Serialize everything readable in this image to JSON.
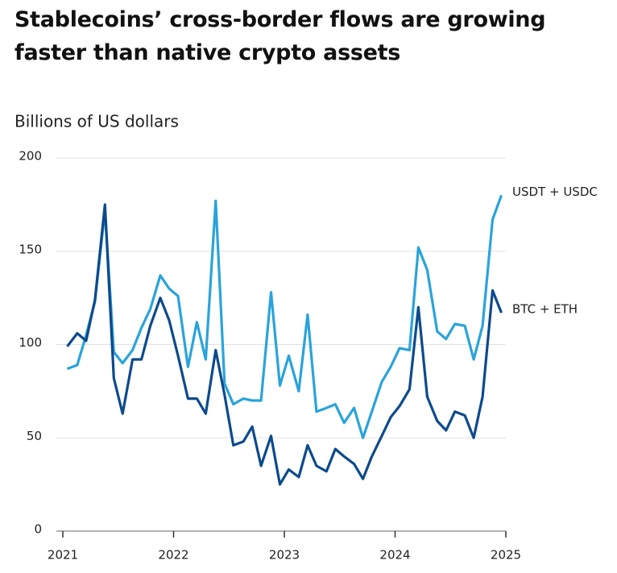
{
  "chart_data": {
    "type": "line",
    "title": "Stablecoins’ cross-border flows are growing faster than native crypto assets",
    "y_label": "Billions of US dollars",
    "x": [
      2021.04,
      2021.13,
      2021.21,
      2021.29,
      2021.38,
      2021.46,
      2021.54,
      2021.63,
      2021.71,
      2021.79,
      2021.88,
      2021.96,
      2022.04,
      2022.13,
      2022.21,
      2022.29,
      2022.38,
      2022.46,
      2022.54,
      2022.63,
      2022.71,
      2022.79,
      2022.88,
      2022.96,
      2023.04,
      2023.13,
      2023.21,
      2023.29,
      2023.38,
      2023.46,
      2023.54,
      2023.63,
      2023.71,
      2023.79,
      2023.88,
      2023.96,
      2024.04,
      2024.13,
      2024.21,
      2024.29,
      2024.38,
      2024.46,
      2024.54,
      2024.63,
      2024.71,
      2024.79,
      2024.88,
      2024.96
    ],
    "series": [
      {
        "name": "USDT + USDC",
        "color": "#2aa3db",
        "values": [
          87,
          89,
          105,
          123,
          172,
          96,
          90,
          97,
          109,
          119,
          137,
          130,
          126,
          88,
          112,
          92,
          177,
          79,
          68,
          71,
          70,
          70,
          128,
          78,
          94,
          75,
          116,
          64,
          66,
          68,
          58,
          66,
          50,
          64,
          80,
          88,
          98,
          97,
          152,
          140,
          107,
          103,
          111,
          110,
          92,
          110,
          167,
          180
        ]
      },
      {
        "name": "BTC + ETH",
        "color": "#0d4a8c",
        "values": [
          99,
          106,
          102,
          124,
          175,
          82,
          63,
          92,
          92,
          110,
          125,
          113,
          94,
          71,
          71,
          63,
          97,
          73,
          46,
          48,
          56,
          35,
          51,
          25,
          33,
          29,
          46,
          35,
          32,
          44,
          40,
          36,
          28,
          40,
          51,
          61,
          67,
          76,
          120,
          72,
          59,
          54,
          64,
          62,
          50,
          72,
          129,
          117
        ]
      }
    ],
    "xlim": [
      2021,
      2025
    ],
    "xticks": [
      2021,
      2022,
      2023,
      2024,
      2025
    ],
    "ylim": [
      0,
      200
    ],
    "yticks": [
      0,
      50,
      100,
      150,
      200
    ],
    "grid": true
  }
}
